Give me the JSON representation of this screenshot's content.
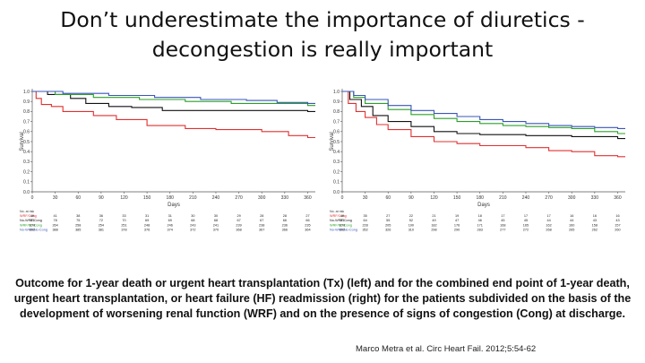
{
  "slide": {
    "title_line1": "Don’t underestimate the importance of diuretics -",
    "title_line2": "decongestion is really important",
    "caption": "Outcome for 1-year death or urgent heart transplantation (Tx) (left) and for the combined end point of 1-year death, urgent heart transplantation, or heart failure (HF) readmission (right) for the patients subdivided on the basis of the development of worsening renal function (WRF) and on the presence of signs of congestion (Cong) at discharge.",
    "citation": "Marco Metra et al. Circ Heart Fail. 2012;5:54-62"
  },
  "colors": {
    "wrf_cong": "#e03030",
    "no_wrf_cong": "#111111",
    "wrf_no_cong": "#2aa02a",
    "no_wrf_no_cong": "#3a55b8",
    "axis": "#555555"
  },
  "chart_data": [
    {
      "type": "line",
      "xlabel": "Days",
      "ylabel": "Survival",
      "x_ticks": [
        0,
        30,
        60,
        90,
        120,
        150,
        180,
        210,
        240,
        270,
        300,
        330,
        360
      ],
      "y_ticks": [
        "0.0",
        "0.1",
        "0.2",
        "0.3",
        "0.4",
        "0.5",
        "0.6",
        "0.7",
        "0.8",
        "0.9",
        "1.0"
      ],
      "xlim": [
        0,
        370
      ],
      "ylim": [
        0,
        1.0
      ],
      "series": [
        {
          "name": "WRF/Cong",
          "color_key": "wrf_cong",
          "points": [
            [
              0,
              1.0
            ],
            [
              5,
              0.93
            ],
            [
              12,
              0.87
            ],
            [
              25,
              0.85
            ],
            [
              40,
              0.8
            ],
            [
              80,
              0.76
            ],
            [
              110,
              0.72
            ],
            [
              150,
              0.66
            ],
            [
              200,
              0.63
            ],
            [
              240,
              0.62
            ],
            [
              270,
              0.62
            ],
            [
              300,
              0.6
            ],
            [
              335,
              0.56
            ],
            [
              360,
              0.54
            ]
          ]
        },
        {
          "name": "No-WRF/Cong",
          "color_key": "no_wrf_cong",
          "points": [
            [
              0,
              1.0
            ],
            [
              20,
              0.97
            ],
            [
              50,
              0.93
            ],
            [
              70,
              0.88
            ],
            [
              100,
              0.85
            ],
            [
              130,
              0.84
            ],
            [
              150,
              0.84
            ],
            [
              170,
              0.81
            ],
            [
              360,
              0.8
            ]
          ]
        },
        {
          "name": "WRF/No-Cong",
          "color_key": "wrf_no_cong",
          "points": [
            [
              0,
              1.0
            ],
            [
              30,
              0.97
            ],
            [
              80,
              0.94
            ],
            [
              140,
              0.92
            ],
            [
              200,
              0.9
            ],
            [
              260,
              0.88
            ],
            [
              300,
              0.88
            ],
            [
              360,
              0.86
            ]
          ]
        },
        {
          "name": "No-WRF/No-Cong",
          "color_key": "no_wrf_no_cong",
          "points": [
            [
              0,
              1.0
            ],
            [
              40,
              0.98
            ],
            [
              100,
              0.96
            ],
            [
              160,
              0.94
            ],
            [
              220,
              0.92
            ],
            [
              280,
              0.91
            ],
            [
              320,
              0.89
            ],
            [
              360,
              0.88
            ]
          ]
        }
      ],
      "risk_table_label": "No. at risk",
      "risk_table": [
        {
          "label": "WRF/Cong",
          "color_key": "wrf_cong",
          "values": [
            "49",
            "41",
            "38",
            "36",
            "33",
            "31",
            "31",
            "30",
            "30",
            "29",
            "28",
            "28",
            "27"
          ]
        },
        {
          "label": "No-WRF/Cong",
          "color_key": "no_wrf_cong",
          "values": [
            "81",
            "78",
            "75",
            "72",
            "70",
            "69",
            "69",
            "68",
            "68",
            "67",
            "67",
            "66",
            "66"
          ]
        },
        {
          "label": "WRF/No-Cong",
          "color_key": "wrf_no_cong",
          "values": [
            "270",
            "264",
            "258",
            "254",
            "251",
            "248",
            "246",
            "243",
            "241",
            "239",
            "238",
            "236",
            "235"
          ]
        },
        {
          "label": "No-WRF/No-Cong",
          "color_key": "no_wrf_no_cong",
          "values": [
            "392",
            "388",
            "385",
            "381",
            "378",
            "376",
            "374",
            "372",
            "370",
            "368",
            "367",
            "366",
            "364"
          ]
        }
      ]
    },
    {
      "type": "line",
      "xlabel": "Days",
      "ylabel": "Survival",
      "x_ticks": [
        0,
        30,
        60,
        90,
        120,
        150,
        180,
        210,
        240,
        270,
        300,
        330,
        360
      ],
      "y_ticks": [
        "0.0",
        "0.1",
        "0.2",
        "0.3",
        "0.4",
        "0.5",
        "0.6",
        "0.7",
        "0.8",
        "0.9",
        "1.0"
      ],
      "xlim": [
        0,
        370
      ],
      "ylim": [
        0,
        1.0
      ],
      "series": [
        {
          "name": "WRF/Cong",
          "color_key": "wrf_cong",
          "points": [
            [
              0,
              1.0
            ],
            [
              8,
              0.88
            ],
            [
              18,
              0.8
            ],
            [
              30,
              0.74
            ],
            [
              45,
              0.67
            ],
            [
              60,
              0.62
            ],
            [
              90,
              0.55
            ],
            [
              120,
              0.5
            ],
            [
              150,
              0.48
            ],
            [
              180,
              0.46
            ],
            [
              240,
              0.44
            ],
            [
              270,
              0.41
            ],
            [
              300,
              0.4
            ],
            [
              330,
              0.36
            ],
            [
              360,
              0.35
            ]
          ]
        },
        {
          "name": "No-WRF/Cong",
          "color_key": "no_wrf_cong",
          "points": [
            [
              0,
              1.0
            ],
            [
              10,
              0.92
            ],
            [
              25,
              0.85
            ],
            [
              40,
              0.76
            ],
            [
              60,
              0.7
            ],
            [
              90,
              0.65
            ],
            [
              120,
              0.6
            ],
            [
              150,
              0.58
            ],
            [
              180,
              0.57
            ],
            [
              240,
              0.56
            ],
            [
              300,
              0.55
            ],
            [
              360,
              0.53
            ]
          ]
        },
        {
          "name": "WRF/No-Cong",
          "color_key": "wrf_no_cong",
          "points": [
            [
              0,
              1.0
            ],
            [
              15,
              0.94
            ],
            [
              30,
              0.88
            ],
            [
              60,
              0.82
            ],
            [
              90,
              0.77
            ],
            [
              120,
              0.73
            ],
            [
              150,
              0.7
            ],
            [
              180,
              0.68
            ],
            [
              210,
              0.66
            ],
            [
              240,
              0.65
            ],
            [
              270,
              0.64
            ],
            [
              300,
              0.63
            ],
            [
              330,
              0.6
            ],
            [
              360,
              0.58
            ]
          ]
        },
        {
          "name": "No-WRF/No-Cong",
          "color_key": "no_wrf_no_cong",
          "points": [
            [
              0,
              1.0
            ],
            [
              15,
              0.96
            ],
            [
              30,
              0.92
            ],
            [
              60,
              0.86
            ],
            [
              90,
              0.81
            ],
            [
              120,
              0.78
            ],
            [
              150,
              0.75
            ],
            [
              180,
              0.72
            ],
            [
              210,
              0.7
            ],
            [
              240,
              0.68
            ],
            [
              270,
              0.66
            ],
            [
              300,
              0.65
            ],
            [
              330,
              0.64
            ],
            [
              360,
              0.63
            ]
          ]
        }
      ],
      "risk_table_label": "No. at risk",
      "risk_table": [
        {
          "label": "WRF/Cong",
          "color_key": "wrf_cong",
          "values": [
            "49",
            "35",
            "27",
            "22",
            "21",
            "19",
            "18",
            "17",
            "17",
            "17",
            "16",
            "16",
            "16"
          ]
        },
        {
          "label": "No-WRF/Cong",
          "color_key": "no_wrf_cong",
          "values": [
            "81",
            "64",
            "55",
            "52",
            "49",
            "47",
            "46",
            "45",
            "45",
            "44",
            "44",
            "43",
            "43"
          ]
        },
        {
          "label": "WRF/No-Cong",
          "color_key": "wrf_no_cong",
          "values": [
            "270",
            "228",
            "205",
            "190",
            "182",
            "176",
            "171",
            "168",
            "165",
            "162",
            "160",
            "158",
            "157"
          ]
        },
        {
          "label": "No-WRF/No-Cong",
          "color_key": "no_wrf_no_cong",
          "values": [
            "392",
            "352",
            "326",
            "310",
            "298",
            "290",
            "283",
            "277",
            "272",
            "268",
            "265",
            "262",
            "260"
          ]
        }
      ]
    }
  ]
}
